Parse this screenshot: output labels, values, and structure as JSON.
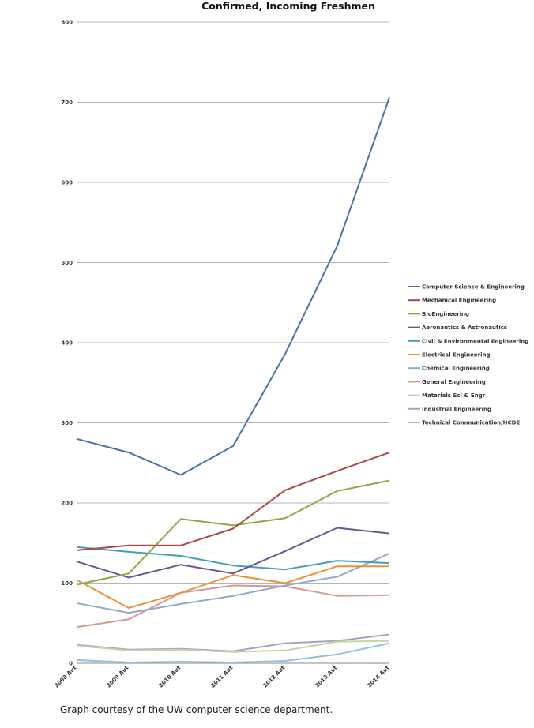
{
  "caption": "Graph courtesy of the UW computer science department.",
  "chart_data": {
    "type": "line",
    "title": "Confirmed, Incoming Freshmen",
    "xlabel": "",
    "ylabel": "",
    "categories": [
      "2008 Aut",
      "2009 Aut",
      "2010 Aut",
      "2011 Aut",
      "2012 Aut",
      "2013 Aut",
      "2014 Aut"
    ],
    "ylim": [
      0,
      800
    ],
    "yticks": [
      0,
      100,
      200,
      300,
      400,
      500,
      600,
      700,
      800
    ],
    "grid": true,
    "legend_position": "right",
    "series": [
      {
        "name": "Computer Science & Engineering",
        "color": "#4a72a8",
        "values": [
          280,
          263,
          235,
          271,
          386,
          521,
          706
        ]
      },
      {
        "name": "Mechanical Engineering",
        "color": "#a84a46",
        "values": [
          141,
          147,
          147,
          168,
          216,
          240,
          263
        ]
      },
      {
        "name": "BioEngineering",
        "color": "#8ca648",
        "values": [
          98,
          112,
          180,
          172,
          181,
          215,
          228
        ]
      },
      {
        "name": "Aeronautics & Astronautics",
        "color": "#6b5596",
        "values": [
          127,
          107,
          123,
          112,
          140,
          169,
          162
        ]
      },
      {
        "name": "Civil & Environmental Engineering",
        "color": "#4a9cb5",
        "values": [
          145,
          139,
          134,
          122,
          117,
          128,
          125
        ]
      },
      {
        "name": "Electrical Engineering",
        "color": "#e8923a",
        "values": [
          104,
          69,
          88,
          110,
          100,
          121,
          121
        ]
      },
      {
        "name": "Chemical Engineering",
        "color": "#93a9d0",
        "values": [
          75,
          63,
          74,
          84,
          97,
          108,
          137
        ]
      },
      {
        "name": "General Engineering",
        "color": "#d99896",
        "values": [
          45,
          55,
          88,
          97,
          96,
          84,
          85
        ]
      },
      {
        "name": "Materials Sci & Engr",
        "color": "#c3d6a0",
        "values": [
          22,
          16,
          17,
          14,
          16,
          27,
          28
        ]
      },
      {
        "name": "Industrial Engineering",
        "color": "#aca0c6",
        "values": [
          23,
          17,
          18,
          15,
          25,
          28,
          36
        ]
      },
      {
        "name": "Technical Communication/HCDE",
        "color": "#8fc3dc",
        "values": [
          4,
          1,
          2,
          1,
          3,
          11,
          25
        ]
      }
    ]
  }
}
